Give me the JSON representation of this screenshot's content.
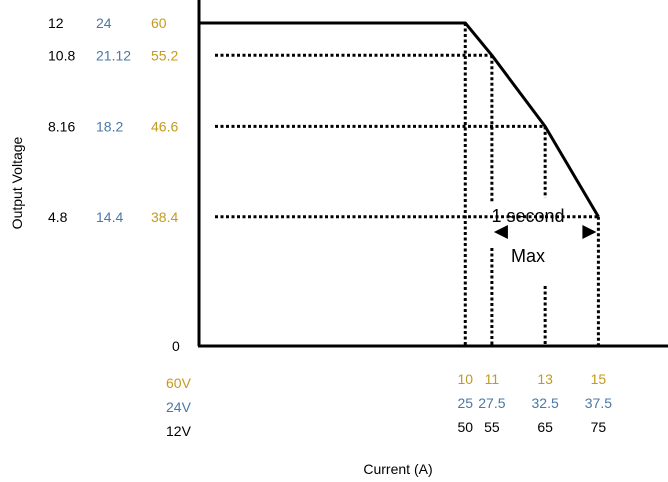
{
  "colors": {
    "v12": "#000000",
    "v24": "#4A78A8",
    "v60": "#C49A1E",
    "line": "#000000"
  },
  "chart_data": {
    "type": "line",
    "title": "",
    "xlabel": "Current (A)",
    "ylabel": "Output Voltage",
    "grid": false,
    "series": [
      {
        "name": "12V",
        "x": [
          0,
          50,
          55,
          65,
          75
        ],
        "y": [
          12,
          12,
          10.8,
          8.16,
          4.8
        ]
      },
      {
        "name": "24V",
        "x": [
          0,
          25,
          27.5,
          32.5,
          37.5
        ],
        "y": [
          24,
          24,
          21.12,
          18.2,
          14.4
        ]
      },
      {
        "name": "60V",
        "x": [
          0,
          10,
          11,
          13,
          15
        ],
        "y": [
          60,
          60,
          55.2,
          46.6,
          38.4
        ]
      }
    ],
    "y_tick_rows": [
      {
        "v12": "12",
        "v24": "24",
        "v60": "60"
      },
      {
        "v12": "10.8",
        "v24": "21.12",
        "v60": "55.2"
      },
      {
        "v12": "8.16",
        "v24": "18.2",
        "v60": "46.6"
      },
      {
        "v12": "4.8",
        "v24": "14.4",
        "v60": "38.4"
      }
    ],
    "y_zero_label": "0",
    "x_tick_columns": [
      {
        "v60": "10",
        "v24": "25",
        "v12": "50"
      },
      {
        "v60": "11",
        "v24": "27.5",
        "v12": "55"
      },
      {
        "v60": "13",
        "v24": "32.5",
        "v12": "65"
      },
      {
        "v60": "15",
        "v24": "37.5",
        "v12": "75"
      }
    ],
    "x_row_labels": {
      "v60": "60V",
      "v24": "24V",
      "v12": "12V"
    },
    "annotation": {
      "line1": "1 second",
      "line2": "Max"
    }
  }
}
